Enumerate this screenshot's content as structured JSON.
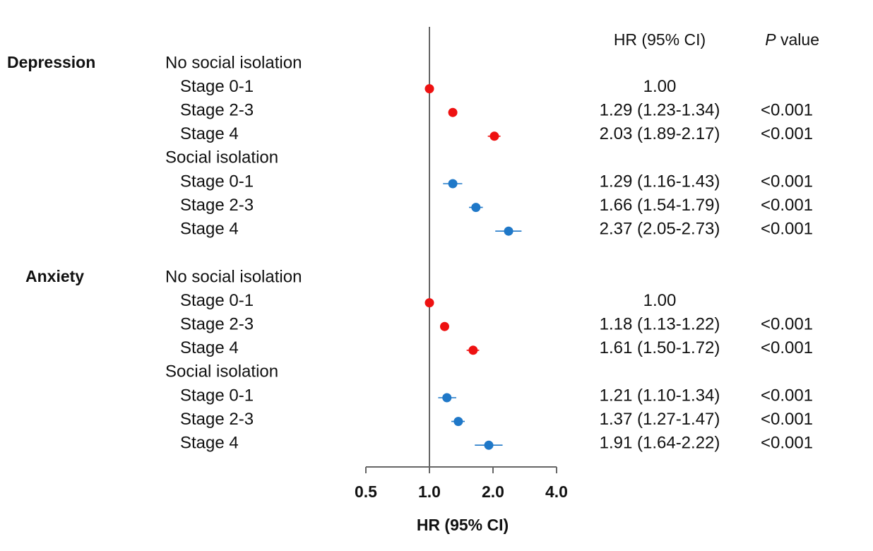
{
  "chart_data": {
    "type": "forest",
    "xlabel": "HR (95% CI)",
    "xscale": "log2",
    "xlim": [
      0.5,
      4.0
    ],
    "reference_line": 1.0,
    "ticks": [
      {
        "value": 0.5,
        "label": "0.5"
      },
      {
        "value": 1.0,
        "label": "1.0"
      },
      {
        "value": 2.0,
        "label": "2.0"
      },
      {
        "value": 4.0,
        "label": "4.0"
      }
    ],
    "columns": {
      "hr_header": "HR (95% CI)",
      "p_header_italic": "P",
      "p_header_rest": " value"
    },
    "colors": {
      "no_isolation": "#ee1111",
      "isolation": "#1f78c8",
      "axis": "#666666"
    },
    "groups": [
      {
        "name": "Depression",
        "subgroups": [
          {
            "name": "No social isolation",
            "series": "no_isolation",
            "rows": [
              {
                "label": "Stage 0-1",
                "hr": 1.0,
                "lo": 1.0,
                "hi": 1.0,
                "hr_text": "1.00",
                "p": ""
              },
              {
                "label": "Stage 2-3",
                "hr": 1.29,
                "lo": 1.23,
                "hi": 1.34,
                "hr_text": "1.29 (1.23-1.34)",
                "p": "<0.001"
              },
              {
                "label": "Stage 4",
                "hr": 2.03,
                "lo": 1.89,
                "hi": 2.17,
                "hr_text": "2.03 (1.89-2.17)",
                "p": "<0.001"
              }
            ]
          },
          {
            "name": "Social isolation",
            "series": "isolation",
            "rows": [
              {
                "label": "Stage 0-1",
                "hr": 1.29,
                "lo": 1.16,
                "hi": 1.43,
                "hr_text": "1.29 (1.16-1.43)",
                "p": "<0.001"
              },
              {
                "label": "Stage 2-3",
                "hr": 1.66,
                "lo": 1.54,
                "hi": 1.79,
                "hr_text": "1.66 (1.54-1.79)",
                "p": "<0.001"
              },
              {
                "label": "Stage 4",
                "hr": 2.37,
                "lo": 2.05,
                "hi": 2.73,
                "hr_text": "2.37 (2.05-2.73)",
                "p": "<0.001"
              }
            ]
          }
        ]
      },
      {
        "name": "Anxiety",
        "subgroups": [
          {
            "name": "No social isolation",
            "series": "no_isolation",
            "rows": [
              {
                "label": "Stage 0-1",
                "hr": 1.0,
                "lo": 1.0,
                "hi": 1.0,
                "hr_text": "1.00",
                "p": ""
              },
              {
                "label": "Stage 2-3",
                "hr": 1.18,
                "lo": 1.13,
                "hi": 1.22,
                "hr_text": "1.18 (1.13-1.22)",
                "p": "<0.001"
              },
              {
                "label": "Stage 4",
                "hr": 1.61,
                "lo": 1.5,
                "hi": 1.72,
                "hr_text": "1.61 (1.50-1.72)",
                "p": "<0.001"
              }
            ]
          },
          {
            "name": "Social isolation",
            "series": "isolation",
            "rows": [
              {
                "label": "Stage 0-1",
                "hr": 1.21,
                "lo": 1.1,
                "hi": 1.34,
                "hr_text": "1.21 (1.10-1.34)",
                "p": "<0.001"
              },
              {
                "label": "Stage 2-3",
                "hr": 1.37,
                "lo": 1.27,
                "hi": 1.47,
                "hr_text": "1.37 (1.27-1.47)",
                "p": "<0.001"
              },
              {
                "label": "Stage 4",
                "hr": 1.91,
                "lo": 1.64,
                "hi": 2.22,
                "hr_text": "1.91 (1.64-2.22)",
                "p": "<0.001"
              }
            ]
          }
        ]
      }
    ]
  }
}
